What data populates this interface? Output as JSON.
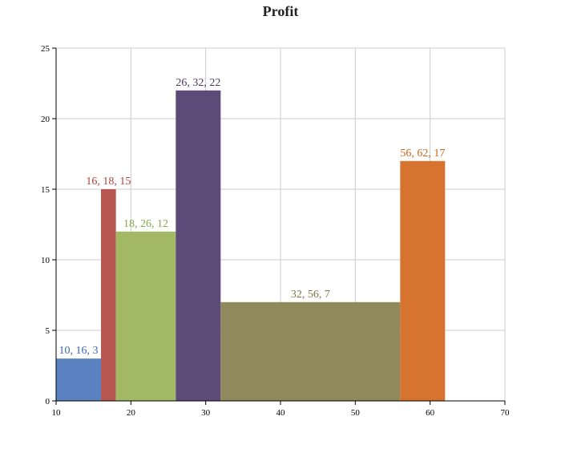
{
  "chart_data": {
    "type": "bar",
    "title": "Profit",
    "xlabel": "",
    "ylabel": "",
    "xlim": [
      10,
      70
    ],
    "ylim": [
      0,
      25
    ],
    "x_ticks": [
      10,
      20,
      30,
      40,
      50,
      60,
      70
    ],
    "y_ticks": [
      0,
      5,
      10,
      15,
      20,
      25
    ],
    "grid": true,
    "bars": [
      {
        "x0": 10,
        "x1": 16,
        "value": 3,
        "label": "10, 16, 3",
        "color": "#5b82c0",
        "label_color": "#3a6ab0"
      },
      {
        "x0": 16,
        "x1": 18,
        "value": 15,
        "label": "16, 18, 15",
        "color": "#b85752",
        "label_color": "#b0433d"
      },
      {
        "x0": 18,
        "x1": 26,
        "value": 12,
        "label": "18, 26, 12",
        "color": "#a2ba64",
        "label_color": "#8aa84a"
      },
      {
        "x0": 26,
        "x1": 32,
        "value": 22,
        "label": "26, 32, 22",
        "color": "#5c4a78",
        "label_color": "#4a3a6a"
      },
      {
        "x0": 32,
        "x1": 56,
        "value": 7,
        "label": "32, 56, 7",
        "color": "#8f895b",
        "label_color": "#7f7846"
      },
      {
        "x0": 56,
        "x1": 62,
        "value": 17,
        "label": "56, 62, 17",
        "color": "#d6742f",
        "label_color": "#cc6418"
      }
    ]
  }
}
